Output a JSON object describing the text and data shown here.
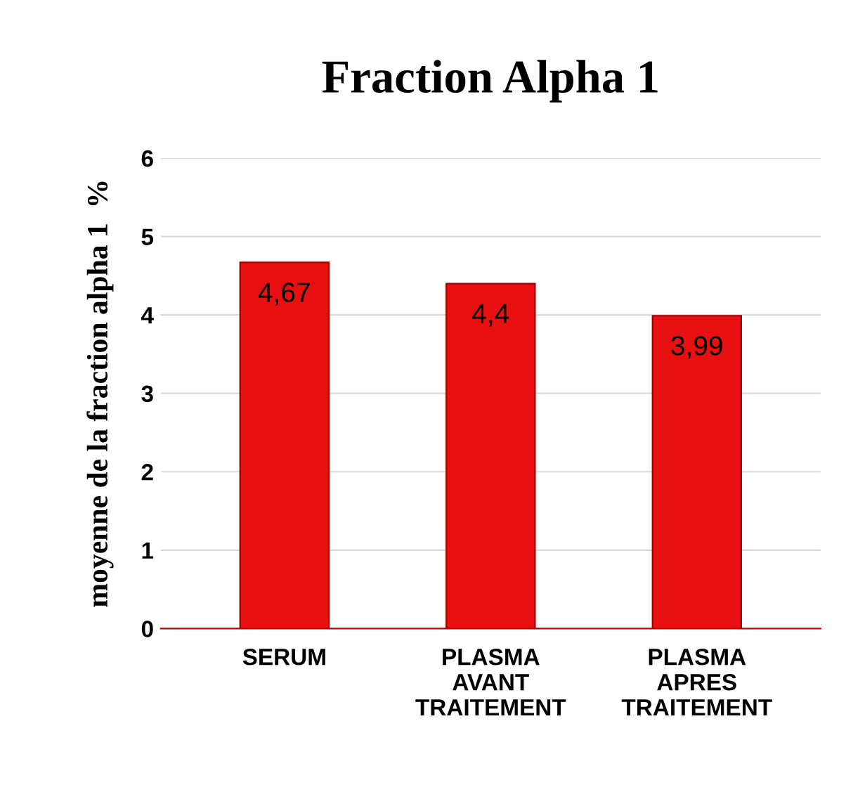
{
  "chart_data": {
    "type": "bar",
    "title": "Fraction Alpha 1",
    "ylabel": "moyenne de la fraction alpha 1  %",
    "categories": [
      "SERUM",
      "PLASMA\nAVANT\nTRAITEMENT",
      "PLASMA\nAPRES\nTRAITEMENT"
    ],
    "values": [
      4.67,
      4.4,
      3.99
    ],
    "value_labels": [
      "4,67",
      "4,4",
      "3,99"
    ],
    "color": "#e81010",
    "ylim": [
      0,
      6
    ],
    "yticks": [
      0,
      1,
      2,
      3,
      4,
      5,
      6
    ],
    "grid": "y"
  }
}
